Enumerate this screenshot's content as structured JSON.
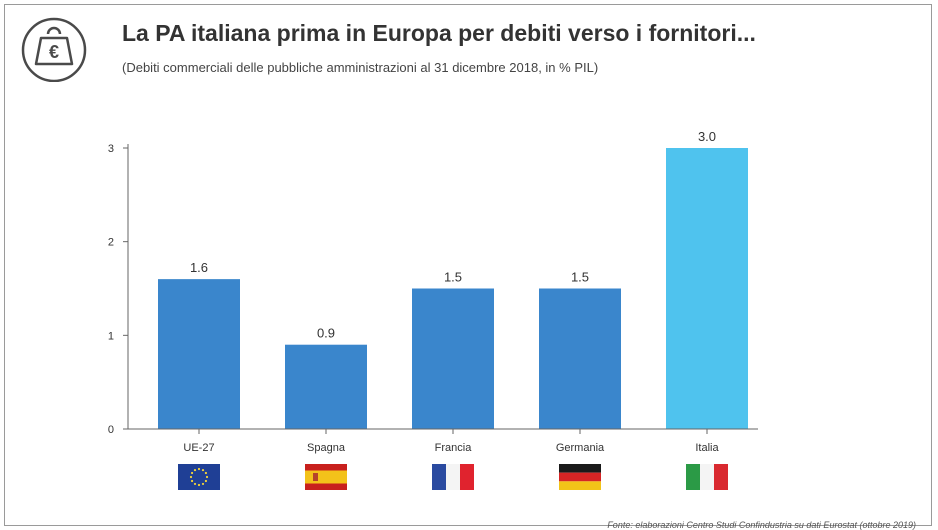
{
  "header": {
    "title": "La PA italiana prima in Europa per debiti verso i fornitori...",
    "subtitle": "(Debiti commerciali delle pubbliche amministrazioni al 31 dicembre 2018, in % PIL)",
    "logo_icon": "euro-weight-icon",
    "logo_symbol": "€"
  },
  "footer": {
    "source": "Fonte: elaborazioni Centro Studi Confindustria su dati Eurostat (ottobre 2019)"
  },
  "colors": {
    "bar": "#3a86cc",
    "bar_highlight": "#4fc3ee",
    "axis": "#666666",
    "text": "#333333"
  },
  "chart_data": {
    "type": "bar",
    "categories": [
      "UE-27",
      "Spagna",
      "Francia",
      "Germania",
      "Italia"
    ],
    "values": [
      1.6,
      0.9,
      1.5,
      1.5,
      3.0
    ],
    "value_labels": [
      "1.6",
      "0.9",
      "1.5",
      "1.5",
      "3.0"
    ],
    "highlight": "Italia",
    "flag_icons": [
      "eu-flag-icon",
      "spain-flag-icon",
      "france-flag-icon",
      "germany-flag-icon",
      "italy-flag-icon"
    ],
    "yticks": [
      0,
      1,
      2,
      3
    ],
    "ylim": [
      0,
      3
    ],
    "xlabel": "",
    "ylabel": "",
    "grid": false,
    "legend": false
  }
}
